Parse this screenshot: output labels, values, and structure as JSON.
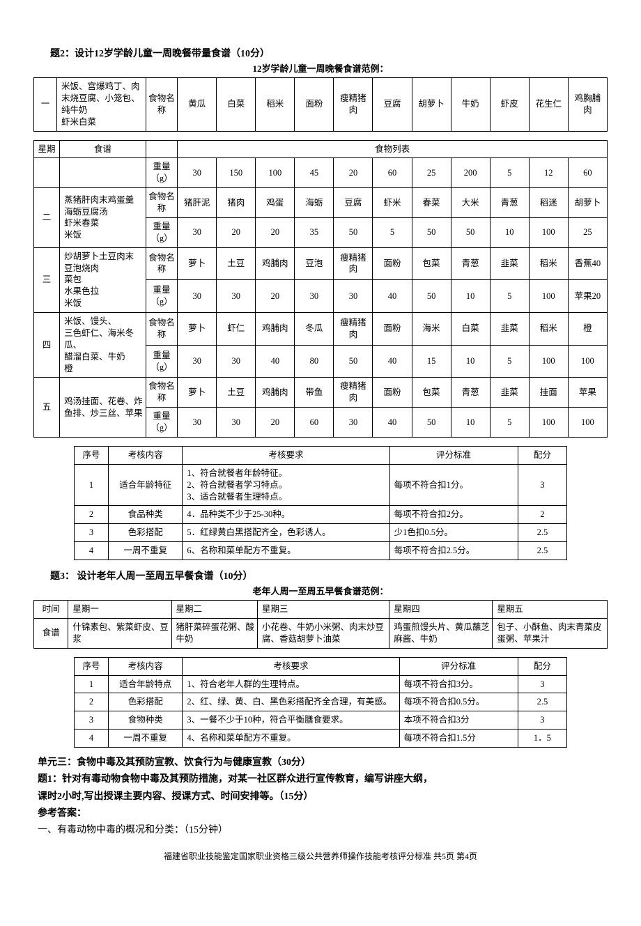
{
  "q2": {
    "title": "题2：设计12岁学龄儿童一周晚餐带量食谱（10分）",
    "subtitle": "12岁学龄儿童一周晚餐食谱范例：",
    "rowA": {
      "day": "一",
      "recipe": "米饭、宫爆鸡丁、肉末烧豆腐、小笼包、纯牛奶\n虾米白菜",
      "nameLabel": "食物名称",
      "foods": [
        "黄瓜",
        "白菜",
        "稻米",
        "面粉",
        "瘦精猪肉",
        "豆腐",
        "胡萝卜",
        "牛奶",
        "虾皮",
        "花生仁",
        "鸡胸脯肉"
      ]
    },
    "headerRow": {
      "c1": "星期",
      "c2": "食谱",
      "c3": "食物列表",
      "wLabel": "重量（g）",
      "weights": [
        "30",
        "150",
        "100",
        "45",
        "20",
        "60",
        "25",
        "200",
        "5",
        "12",
        "60"
      ]
    },
    "days": [
      {
        "day": "二",
        "recipe": "蒸猪肝肉末鸡蛋羹\n海蛎豆腐汤\n虾米春菜\n米饭",
        "foods": [
          "猪肝泥",
          "猪肉",
          "鸡蛋",
          "海蛎",
          "豆腐",
          "虾米",
          "春菜",
          "大米",
          "青葱",
          "稻迷",
          "胡萝卜"
        ],
        "weights": [
          "30",
          "20",
          "20",
          "35",
          "50",
          "5",
          "50",
          "50",
          "10",
          "100",
          "25"
        ]
      },
      {
        "day": "三",
        "recipe": "炒胡萝卜土豆肉末\n豆泡烧肉\n菜包\n水果色拉\n米饭",
        "foods": [
          "萝卜",
          "土豆",
          "鸡脯肉",
          "豆泡",
          "瘦精猪肉",
          "面粉",
          "包菜",
          "青葱",
          "韭菜",
          "稻米",
          "香蕉40"
        ],
        "weights": [
          "30",
          "30",
          "20",
          "30",
          "30",
          "40",
          "50",
          "10",
          "5",
          "100",
          "苹果20"
        ]
      },
      {
        "day": "四",
        "recipe": "米饭、馒头、\n三色虾仁、海米冬瓜、\n醋溜白菜、牛奶\n橙",
        "foods": [
          "萝卜",
          "虾仁",
          "鸡脯肉",
          "冬瓜",
          "瘦精猪肉",
          "面粉",
          "海米",
          "白菜",
          "韭菜",
          "稻米",
          "橙"
        ],
        "weights": [
          "30",
          "30",
          "40",
          "80",
          "50",
          "40",
          "15",
          "10",
          "5",
          "100",
          "100"
        ]
      },
      {
        "day": "五",
        "recipe": "鸡汤挂面、花卷、炸鱼排、炒三丝、苹果",
        "foods": [
          "萝卜",
          "土豆",
          "鸡脯肉",
          "带鱼",
          "瘦精猪肉",
          "面粉",
          "包菜",
          "青葱",
          "韭菜",
          "挂面",
          "苹果"
        ],
        "weights": [
          "30",
          "30",
          "20",
          "60",
          "30",
          "40",
          "50",
          "10",
          "5",
          "100",
          "100"
        ]
      }
    ],
    "nameLabel": "食物名称",
    "weightLabel": "重量（g）",
    "scoring": {
      "head": [
        "序号",
        "考核内容",
        "考核要求",
        "评分标准",
        "配分"
      ],
      "rows": [
        {
          "n": "1",
          "item": "适合年龄特征",
          "req": "1、符合就餐者年龄特征。\n2、符合就餐者学习特点。\n3、适合就餐者生理特点。",
          "std": "每项不符合扣1分。",
          "pts": "3"
        },
        {
          "n": "2",
          "item": "食品种类",
          "req": "4．品种类不少于25-30种。",
          "std": "每项不符合扣2分。",
          "pts": "2"
        },
        {
          "n": "3",
          "item": "色彩搭配",
          "req": "5．红绿黄白黑搭配齐全，色彩诱人。",
          "std": "少1色扣0.5分。",
          "pts": "2.5"
        },
        {
          "n": "4",
          "item": "一周不重复",
          "req": "6、名称和菜单配方不重复。",
          "std": "每项不符合扣2.5分。",
          "pts": "2.5"
        }
      ]
    }
  },
  "q3": {
    "title": "题3：  设计老年人周一至周五早餐食谱（10分）",
    "subtitle": "老年人周一至周五早餐食谱范例：",
    "header": [
      "时间",
      "星期一",
      "星期二",
      "星期三",
      "星期四",
      "星期五"
    ],
    "rowLabel": "食谱",
    "cells": [
      "什锦素包、紫菜虾皮、豆浆",
      "猪肝菜碎蛋花粥、酸牛奶",
      "小花卷、牛奶小米粥、肉末炒豆腐、香菇胡萝卜油菜",
      "鸡蛋煎馒头片、黄瓜蘸芝麻酱、牛奶",
      "包子、小酥鱼、肉末青菜皮蛋粥、苹果汁"
    ],
    "scoring": {
      "head": [
        "序号",
        "考核内容",
        "考核要求",
        "评分标准",
        "配分"
      ],
      "rows": [
        {
          "n": "1",
          "item": "适合年龄特点",
          "req": "1、符合老年人群的生理特点。",
          "std": "每项不符合扣3分。",
          "pts": "3"
        },
        {
          "n": "2",
          "item": "色彩搭配",
          "req": "2、红、绿、黄、白、黑色彩搭配齐全合理，有美感。",
          "std": "每项不符合扣0.5分。",
          "pts": "2.5"
        },
        {
          "n": "3",
          "item": "食物种类",
          "req": "3、一餐不少于10种，符合平衡膳食要求。",
          "std": "本项不符合扣3分",
          "pts": "3"
        },
        {
          "n": "4",
          "item": "一周不重复",
          "req": "4、名称和菜单配方不重复。",
          "std": "每项不符合扣1.5分",
          "pts": "1．5"
        }
      ]
    }
  },
  "unit3": {
    "heading": "  单元三：食物中毒及其预防宣教、饮食行为与健康宣教（30分）",
    "q1a": "题1：针对有毒动物食物中毒及其预防措施，对某一社区群众进行宣传教育，编写讲座大纲，",
    "q1b": "课时2小时,写出授课主要内容、授课方式、时间安排等。（15分）",
    "ans": "  参考答案：",
    "p1": "    一、有毒动物中毒的概况和分类：（15分钟）"
  },
  "footer": "福建省职业技能鉴定国家职业资格三级公共营养师操作技能考核评分标准  共5页  第4页"
}
